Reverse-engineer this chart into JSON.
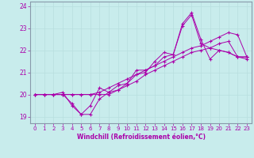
{
  "xlabel": "Windchill (Refroidissement éolien,°C)",
  "bg_color": "#c8ecec",
  "line_color": "#aa00aa",
  "grid_color": "#b8dede",
  "axis_color": "#aa00aa",
  "spine_color": "#8899aa",
  "xlim": [
    -0.5,
    23.5
  ],
  "ylim": [
    18.7,
    24.2
  ],
  "yticks": [
    19,
    20,
    21,
    22,
    23,
    24
  ],
  "xticks": [
    0,
    1,
    2,
    3,
    4,
    5,
    6,
    7,
    8,
    9,
    10,
    11,
    12,
    13,
    14,
    15,
    16,
    17,
    18,
    19,
    20,
    21,
    22,
    23
  ],
  "series": [
    [
      20.0,
      20.0,
      20.0,
      20.0,
      19.6,
      19.1,
      19.1,
      19.8,
      20.1,
      20.4,
      20.5,
      20.9,
      21.0,
      21.5,
      21.9,
      21.8,
      23.1,
      23.6,
      22.3,
      22.1,
      22.0,
      21.9,
      21.7,
      21.7
    ],
    [
      20.0,
      20.0,
      20.0,
      20.1,
      19.5,
      19.1,
      19.5,
      20.3,
      20.1,
      20.2,
      20.5,
      21.1,
      21.1,
      21.3,
      21.7,
      21.8,
      23.2,
      23.7,
      22.5,
      21.6,
      22.0,
      21.9,
      21.7,
      21.6
    ],
    [
      20.0,
      20.0,
      20.0,
      20.0,
      20.0,
      20.0,
      20.0,
      20.1,
      20.3,
      20.5,
      20.7,
      20.9,
      21.1,
      21.3,
      21.5,
      21.7,
      21.9,
      22.1,
      22.2,
      22.4,
      22.6,
      22.8,
      22.7,
      21.7
    ],
    [
      20.0,
      20.0,
      20.0,
      20.0,
      20.0,
      20.0,
      20.0,
      20.0,
      20.0,
      20.2,
      20.4,
      20.6,
      20.9,
      21.1,
      21.3,
      21.5,
      21.7,
      21.9,
      22.0,
      22.1,
      22.3,
      22.4,
      21.7,
      21.7
    ]
  ],
  "xtick_fontsize": 5,
  "ytick_fontsize": 5.5,
  "xlabel_fontsize": 5.5
}
